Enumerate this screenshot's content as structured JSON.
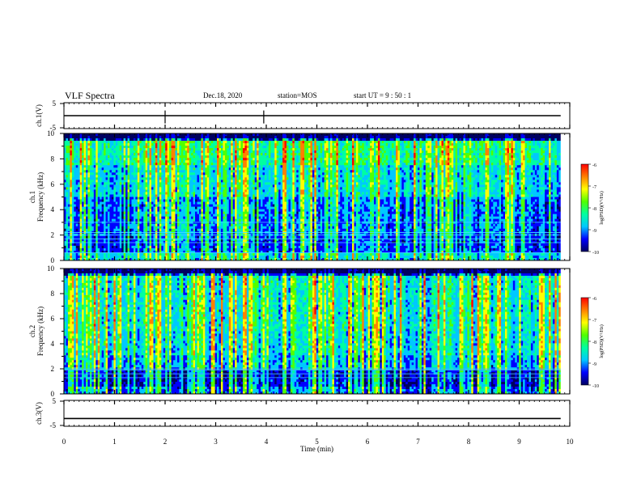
{
  "header": {
    "title": "VLF Spectra",
    "date": "Dec.18, 2020",
    "station": "station=MOS",
    "start_ut": "start  UT  =   9  : 50 : 1"
  },
  "chart_data": [
    {
      "type": "line",
      "id": "ch1-voltage",
      "ylabel": "ch.1(V)",
      "ylim": [
        -5,
        5
      ],
      "yticks": [
        "5",
        "-5"
      ],
      "xlim": [
        0,
        10
      ],
      "series": [
        {
          "x": [
            0,
            9.82
          ],
          "y": [
            0,
            0
          ]
        }
      ]
    },
    {
      "type": "heatmap",
      "id": "ch1-spectrogram",
      "ylabel": "ch.1\nFrequency (kHz)",
      "ylim": [
        0,
        10
      ],
      "yticks": [
        "0",
        "2",
        "4",
        "6",
        "8",
        "10"
      ],
      "xlim": [
        0,
        10
      ],
      "data_end_min": 9.82,
      "colorbar": {
        "label": "log(PSD)(V²/Hz)",
        "ticks": [
          "-6",
          "-7",
          "-8",
          "-9",
          "-10"
        ],
        "range": [
          -10,
          -6
        ]
      }
    },
    {
      "type": "heatmap",
      "id": "ch2-spectrogram",
      "ylabel": "ch.2\nFrequency (kHz)",
      "ylim": [
        0,
        10
      ],
      "yticks": [
        "0",
        "2",
        "4",
        "6",
        "8",
        "10"
      ],
      "xlim": [
        0,
        10
      ],
      "data_end_min": 9.82,
      "colorbar": {
        "label": "log(PSD)(V²/Hz)",
        "ticks": [
          "-6",
          "-7",
          "-8",
          "-9",
          "-10"
        ],
        "range": [
          -10,
          -6
        ]
      }
    },
    {
      "type": "line",
      "id": "ch3-voltage",
      "ylabel": "ch.3(V)",
      "ylim": [
        -5,
        5
      ],
      "yticks": [
        "5",
        "-5"
      ],
      "xlim": [
        0,
        10
      ],
      "series": [
        {
          "x": [
            0,
            9.82
          ],
          "y": [
            -2,
            -2
          ]
        }
      ]
    }
  ],
  "xaxis": {
    "label": "Time  (min)",
    "ticks": [
      "0",
      "1",
      "2",
      "3",
      "4",
      "5",
      "6",
      "7",
      "8",
      "9",
      "10"
    ]
  },
  "colormap": [
    "#000060",
    "#0000ff",
    "#00c8ff",
    "#00ffa0",
    "#50ff00",
    "#ffff00",
    "#ff8000",
    "#ff0000",
    "#ffffff"
  ]
}
